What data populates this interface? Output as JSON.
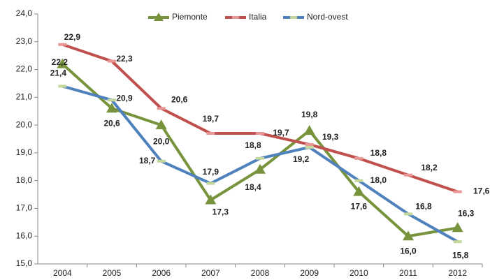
{
  "chart_data": {
    "type": "line",
    "categories": [
      "2004",
      "2005",
      "2006",
      "2007",
      "2008",
      "2009",
      "2010",
      "2011",
      "2012"
    ],
    "series": [
      {
        "name": "Piemonte",
        "color": "#77933c",
        "marker": "triangle",
        "values": [
          22.2,
          20.6,
          20.0,
          17.3,
          18.4,
          19.8,
          17.6,
          16.0,
          16.3
        ],
        "value_labels": [
          "22,2",
          "20,6",
          "20,0",
          "17,3",
          "18,4",
          "19,8",
          "17,6",
          "16,0",
          "16,3"
        ]
      },
      {
        "name": "Italia",
        "color": "#c0504d",
        "marker": "dash",
        "values": [
          22.9,
          22.3,
          20.6,
          19.7,
          19.7,
          19.3,
          18.8,
          18.2,
          17.6
        ],
        "value_labels": [
          "22,9",
          "22,3",
          "20,6",
          "19,7",
          "19,7",
          "19,3",
          "18,8",
          "18,2",
          "17,6"
        ]
      },
      {
        "name": "Nord-ovest",
        "color": "#4f81bd",
        "marker": "dash",
        "values": [
          21.4,
          20.9,
          18.7,
          17.9,
          18.8,
          19.2,
          18.0,
          16.8,
          15.8
        ],
        "value_labels": [
          "21,4",
          "20,9",
          "18,7",
          "17,9",
          "18,8",
          "19,2",
          "18,0",
          "16,8",
          "15,8"
        ]
      }
    ],
    "ylim": [
      15,
      24
    ],
    "yticks": [
      {
        "value": 15,
        "label": "15,0"
      },
      {
        "value": 16,
        "label": "16,0"
      },
      {
        "value": 17,
        "label": "17,0"
      },
      {
        "value": 18,
        "label": "18,0"
      },
      {
        "value": 19,
        "label": "19,0"
      },
      {
        "value": 20,
        "label": "20,0"
      },
      {
        "value": 21,
        "label": "21,0"
      },
      {
        "value": 22,
        "label": "22,0"
      },
      {
        "value": 23,
        "label": "23,0"
      },
      {
        "value": 24,
        "label": "24,0"
      }
    ],
    "grid": false,
    "legend": "top"
  }
}
